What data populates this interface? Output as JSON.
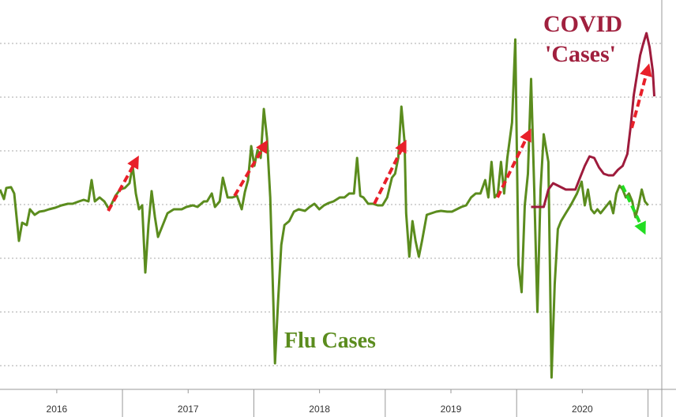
{
  "chart_data": {
    "type": "line",
    "xlim": [
      2016.068,
      2021.213
    ],
    "ylim": [
      0,
      493
    ],
    "yticks": [
      30,
      98,
      166,
      234,
      302,
      370,
      438
    ],
    "show_ytick_labels": false,
    "grid": true,
    "xticks": [
      {
        "value": 2016.5,
        "label": "2016"
      },
      {
        "value": 2017.5,
        "label": "2017"
      },
      {
        "value": 2018.5,
        "label": "2018"
      },
      {
        "value": 2019.5,
        "label": "2019"
      },
      {
        "value": 2020.5,
        "label": "2020"
      }
    ],
    "xminorticks": [
      2017,
      2018,
      2019,
      2020,
      2021
    ],
    "annotations": [
      {
        "text": "Flu Cases",
        "color": "#5b8c1e"
      },
      {
        "text": "COVID",
        "color": "#a0203e"
      },
      {
        "text": "'Cases'",
        "color": "#a0203e"
      }
    ],
    "series": [
      {
        "color": "#5b8c1e",
        "x": [
          2016.068,
          2016.098,
          2016.116,
          2016.152,
          2016.176,
          2016.212,
          2016.236,
          2016.272,
          2016.296,
          2016.332,
          2016.368,
          2016.405,
          2016.441,
          2016.489,
          2016.537,
          2016.585,
          2016.621,
          2016.669,
          2016.705,
          2016.741,
          2016.765,
          2016.79,
          2016.826,
          2016.862,
          2016.898,
          2016.946,
          2016.982,
          2017.018,
          2017.054,
          2017.078,
          2017.102,
          2017.126,
          2017.15,
          2017.174,
          2017.198,
          2017.222,
          2017.247,
          2017.271,
          2017.307,
          2017.343,
          2017.391,
          2017.451,
          2017.487,
          2017.535,
          2017.571,
          2017.62,
          2017.644,
          2017.68,
          2017.704,
          2017.74,
          2017.764,
          2017.8,
          2017.836,
          2017.872,
          2017.908,
          2017.932,
          2017.956,
          2017.98,
          2018.004,
          2018.028,
          2018.052,
          2018.076,
          2018.1,
          2018.125,
          2018.149,
          2018.161,
          2018.185,
          2018.209,
          2018.233,
          2018.269,
          2018.305,
          2018.341,
          2018.389,
          2018.425,
          2018.461,
          2018.498,
          2018.534,
          2018.57,
          2018.606,
          2018.654,
          2018.69,
          2018.726,
          2018.762,
          2018.786,
          2018.81,
          2018.834,
          2018.87,
          2018.907,
          2018.943,
          2018.979,
          2019.015,
          2019.051,
          2019.075,
          2019.099,
          2019.123,
          2019.147,
          2019.159,
          2019.183,
          2019.207,
          2019.231,
          2019.256,
          2019.28,
          2019.316,
          2019.352,
          2019.388,
          2019.424,
          2019.472,
          2019.508,
          2019.544,
          2019.58,
          2019.616,
          2019.653,
          2019.689,
          2019.725,
          2019.761,
          2019.785,
          2019.809,
          2019.833,
          2019.857,
          2019.881,
          2019.905,
          2019.929,
          2019.965,
          2019.99,
          2020.014,
          2020.038,
          2020.062,
          2020.086,
          2020.11,
          2020.134,
          2020.158,
          2020.182,
          2020.206,
          2020.242,
          2020.266,
          2020.29,
          2020.314,
          2020.338,
          2020.374,
          2020.411,
          2020.459,
          2020.495,
          2020.519,
          2020.543,
          2020.567,
          2020.591,
          2020.615,
          2020.639,
          2020.663,
          2020.687,
          2020.711,
          2020.735,
          2020.759,
          2020.783,
          2020.807,
          2020.831,
          2020.855,
          2020.88,
          2020.904,
          2020.928,
          2020.952,
          2020.976,
          2021.0
        ],
        "values": [
          253,
          241,
          255,
          256,
          248,
          188,
          211,
          208,
          228,
          221,
          225,
          226,
          228,
          230,
          233,
          235,
          235,
          238,
          240,
          238,
          265,
          238,
          243,
          238,
          228,
          245,
          253,
          255,
          261,
          283,
          248,
          228,
          233,
          148,
          208,
          251,
          218,
          193,
          208,
          223,
          228,
          228,
          231,
          233,
          231,
          238,
          238,
          248,
          231,
          238,
          268,
          243,
          243,
          245,
          228,
          250,
          265,
          308,
          283,
          303,
          293,
          355,
          318,
          243,
          108,
          33,
          113,
          183,
          208,
          213,
          225,
          228,
          226,
          231,
          235,
          228,
          233,
          236,
          238,
          243,
          243,
          248,
          248,
          293,
          245,
          243,
          235,
          235,
          233,
          233,
          243,
          268,
          273,
          293,
          358,
          313,
          223,
          168,
          213,
          188,
          168,
          188,
          221,
          223,
          225,
          226,
          225,
          225,
          228,
          231,
          233,
          243,
          248,
          248,
          265,
          243,
          288,
          243,
          248,
          288,
          248,
          293,
          338,
          443,
          158,
          123,
          233,
          273,
          393,
          253,
          98,
          253,
          323,
          288,
          15,
          133,
          203,
          213,
          223,
          233,
          248,
          263,
          233,
          253,
          228,
          223,
          228,
          223,
          228,
          233,
          238,
          223,
          248,
          258,
          253,
          243,
          248,
          238,
          218,
          233,
          253,
          238,
          233
        ],
        "y_axis": "y"
      },
      {
        "color": "#9e1b3c",
        "x": [
          2020.11,
          2020.206,
          2020.242,
          2020.278,
          2020.326,
          2020.374,
          2020.411,
          2020.447,
          2020.483,
          2020.519,
          2020.555,
          2020.591,
          2020.627,
          2020.663,
          2020.699,
          2020.735,
          2020.771,
          2020.807,
          2020.843,
          2020.868,
          2020.892,
          2020.916,
          2020.94,
          2020.964,
          2020.988,
          2021.012,
          2021.036,
          2021.048
        ],
        "values": [
          231,
          231,
          253,
          261,
          257,
          253,
          253,
          253,
          268,
          283,
          295,
          293,
          281,
          273,
          271,
          271,
          278,
          283,
          298,
          333,
          373,
          398,
          423,
          438,
          451,
          433,
          403,
          371
        ]
      }
    ]
  }
}
